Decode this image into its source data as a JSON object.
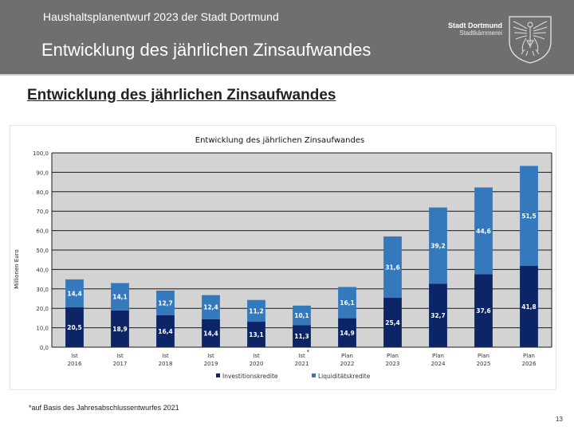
{
  "header": {
    "subtitle": "Haushaltsplanentwurf 2023 der Stadt Dortmund",
    "title": "Entwicklung des jährlichen Zinsaufwandes",
    "logo_line1": "Stadt Dortmund",
    "logo_line2": "Stadtkämmerei",
    "logo_icon": "coat-of-arms-eagle"
  },
  "page_heading": "Entwicklung des jährlichen Zinsaufwandes",
  "footnote": "*auf Basis des Jahresabschlussentwurfes 2021",
  "page_number": "13",
  "colors": {
    "header_bg": "#6f6f6f",
    "plot_bg": "#d3d3d3",
    "investitionskredite": "#0b2567",
    "liquiditaetskredite": "#3579bd"
  },
  "chart_data": {
    "type": "bar",
    "stacked": true,
    "title": "Entwicklung des jährlichen Zinsaufwandes",
    "xlabel": "",
    "ylabel": "Millionen Euro",
    "ylim": [
      0,
      100
    ],
    "yticks": [
      "0,0",
      "10,0",
      "20,0",
      "30,0",
      "40,0",
      "50,0",
      "60,0",
      "70,0",
      "80,0",
      "90,0",
      "100,0"
    ],
    "grid": true,
    "legend_position": "bottom",
    "categories": [
      {
        "line1": "Ist",
        "line2": "2016",
        "marker": ""
      },
      {
        "line1": "Ist",
        "line2": "2017",
        "marker": ""
      },
      {
        "line1": "Ist",
        "line2": "2018",
        "marker": ""
      },
      {
        "line1": "Ist",
        "line2": "2019",
        "marker": ""
      },
      {
        "line1": "Ist",
        "line2": "2020",
        "marker": ""
      },
      {
        "line1": "Ist",
        "line2": "2021",
        "marker": "*"
      },
      {
        "line1": "Plan",
        "line2": "2022",
        "marker": ""
      },
      {
        "line1": "Plan",
        "line2": "2023",
        "marker": ""
      },
      {
        "line1": "Plan",
        "line2": "2024",
        "marker": ""
      },
      {
        "line1": "Plan",
        "line2": "2025",
        "marker": ""
      },
      {
        "line1": "Plan",
        "line2": "2026",
        "marker": ""
      }
    ],
    "series": [
      {
        "name": "Investitionskredite",
        "values": [
          20.5,
          18.9,
          16.4,
          14.4,
          13.1,
          11.3,
          14.9,
          25.4,
          32.7,
          37.6,
          41.8
        ],
        "labels": [
          "20,5",
          "18,9",
          "16,4",
          "14,4",
          "13,1",
          "11,3",
          "14,9",
          "25,4",
          "32,7",
          "37,6",
          "41,8"
        ]
      },
      {
        "name": "Liquiditätskredite",
        "values": [
          14.4,
          14.1,
          12.7,
          12.4,
          11.2,
          10.1,
          16.1,
          31.6,
          39.2,
          44.6,
          51.5
        ],
        "labels": [
          "14,4",
          "14,1",
          "12,7",
          "12,4",
          "11,2",
          "10,1",
          "16,1",
          "31,6",
          "39,2",
          "44,6",
          "51,5"
        ]
      }
    ]
  }
}
